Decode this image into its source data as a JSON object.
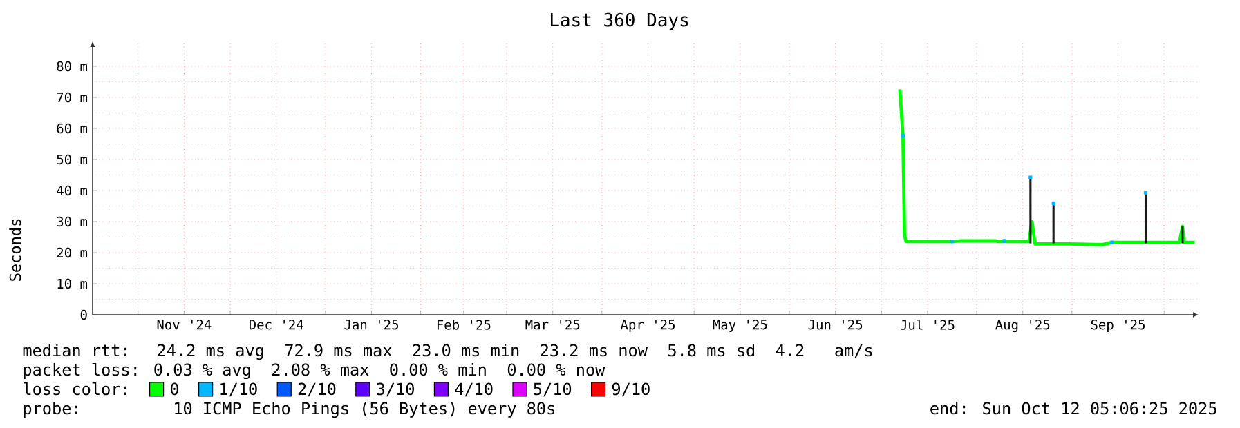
{
  "chart_data": {
    "type": "line",
    "title": "Last 360 Days",
    "ylabel": "Seconds",
    "xlim": [
      "2024-10-17T05:06",
      "2025-10-12T05:06"
    ],
    "xticks": [
      {
        "value": "2024-11-01",
        "label": null
      },
      {
        "value": "2024-11-16",
        "label": "Nov '24"
      },
      {
        "value": "2024-12-01",
        "label": null
      },
      {
        "value": "2024-12-16",
        "label": "Dec '24"
      },
      {
        "value": "2025-01-01",
        "label": null
      },
      {
        "value": "2025-01-16",
        "label": "Jan '25"
      },
      {
        "value": "2025-02-01",
        "label": null
      },
      {
        "value": "2025-02-15",
        "label": "Feb '25"
      },
      {
        "value": "2025-03-01",
        "label": null
      },
      {
        "value": "2025-03-16",
        "label": "Mar '25"
      },
      {
        "value": "2025-04-01",
        "label": null
      },
      {
        "value": "2025-04-16",
        "label": "Apr '25"
      },
      {
        "value": "2025-05-01",
        "label": null
      },
      {
        "value": "2025-05-16",
        "label": "May '25"
      },
      {
        "value": "2025-06-01",
        "label": null
      },
      {
        "value": "2025-06-16",
        "label": "Jun '25"
      },
      {
        "value": "2025-07-01",
        "label": null
      },
      {
        "value": "2025-07-16",
        "label": "Jul '25"
      },
      {
        "value": "2025-08-01",
        "label": null
      },
      {
        "value": "2025-08-16",
        "label": "Aug '25"
      },
      {
        "value": "2025-09-01",
        "label": null
      },
      {
        "value": "2025-09-16",
        "label": "Sep '25"
      },
      {
        "value": "2025-10-01",
        "label": null
      }
    ],
    "ylim": [
      0,
      88
    ],
    "yticks": [
      0,
      {
        "value": 10,
        "label": "10 m"
      },
      {
        "value": 20,
        "label": "20 m"
      },
      {
        "value": 30,
        "label": "30 m"
      },
      {
        "value": 40,
        "label": "40 m"
      },
      {
        "value": 50,
        "label": "50 m"
      },
      {
        "value": 60,
        "label": "60 m"
      },
      {
        "value": 70,
        "label": "70 m"
      },
      {
        "value": 80,
        "label": "80 m"
      }
    ],
    "grid": true,
    "legend": "bottom",
    "legend_title": "loss color:",
    "series": [
      {
        "name": "0",
        "color": "#00ff00",
        "x": [
          "2025-07-07T00:00",
          "2025-07-08T00:00",
          "2025-07-08T12:00",
          "2025-07-09T00:00",
          "2025-07-24T00:00",
          "2025-07-27T00:00",
          "2025-08-07T00:00",
          "2025-08-08T00:00",
          "2025-08-18T00:00",
          "2025-08-19T00:00",
          "2025-08-20T00:00",
          "2025-08-31T00:00",
          "2025-09-11T00:00",
          "2025-09-14T00:00",
          "2025-10-06T00:00",
          "2025-10-07T00:00",
          "2025-10-07T12:00",
          "2025-10-11T00:00"
        ],
        "values": [
          72.6,
          57.6,
          25.8,
          23.6,
          23.6,
          23.8,
          23.8,
          23.6,
          23.6,
          30,
          22.8,
          22.8,
          22.6,
          23.3,
          23.3,
          28.4,
          23.3,
          23.3
        ]
      },
      {
        "type": "bar",
        "color": "#1a1a1a",
        "x": [
          "2025-08-18T12:00",
          "2025-08-26T00:00",
          "2025-09-25T00:00",
          "2025-10-07T00:00"
        ],
        "base": [
          23,
          23,
          23,
          23
        ],
        "values": [
          21.2,
          12.9,
          16.3,
          5.4
        ]
      },
      {
        "type": "scatter",
        "marker": "square",
        "name": "1/10",
        "color": "#00b8ff",
        "x": [
          "2025-07-08T00:00",
          "2025-07-24T00:00",
          "2025-08-10T00:00",
          "2025-08-18T12:00",
          "2025-08-26T00:00",
          "2025-09-14T00:00",
          "2025-09-25T00:00"
        ],
        "values": [
          57.6,
          23.6,
          23.8,
          44.2,
          35.9,
          23.3,
          39.3
        ]
      },
      {
        "type": "scatter",
        "marker": "square",
        "name": "2/10",
        "color": "#0059ff"
      },
      {
        "type": "scatter",
        "marker": "square",
        "name": "3/10",
        "color": "#5e00ff"
      },
      {
        "type": "scatter",
        "marker": "square",
        "name": "4/10",
        "color": "#7e00ff"
      },
      {
        "type": "scatter",
        "marker": "square",
        "name": "5/10",
        "color": "#dd00ff"
      },
      {
        "type": "scatter",
        "marker": "square",
        "name": "9/10",
        "color": "#ff0000"
      }
    ],
    "annotations": [
      "median rtt:  24.2 ms avg  72.9 ms max  23.0 ms min  23.2 ms now  5.8 ms sd  4.2   am/s",
      "packet loss: 0.03 % avg  2.08 % max  0.00 % min  0.00 % now",
      "probe:       10 ICMP Echo Pings (56 Bytes) every 80s",
      "end: Sun Oct 12 05:06:25 2025"
    ]
  }
}
